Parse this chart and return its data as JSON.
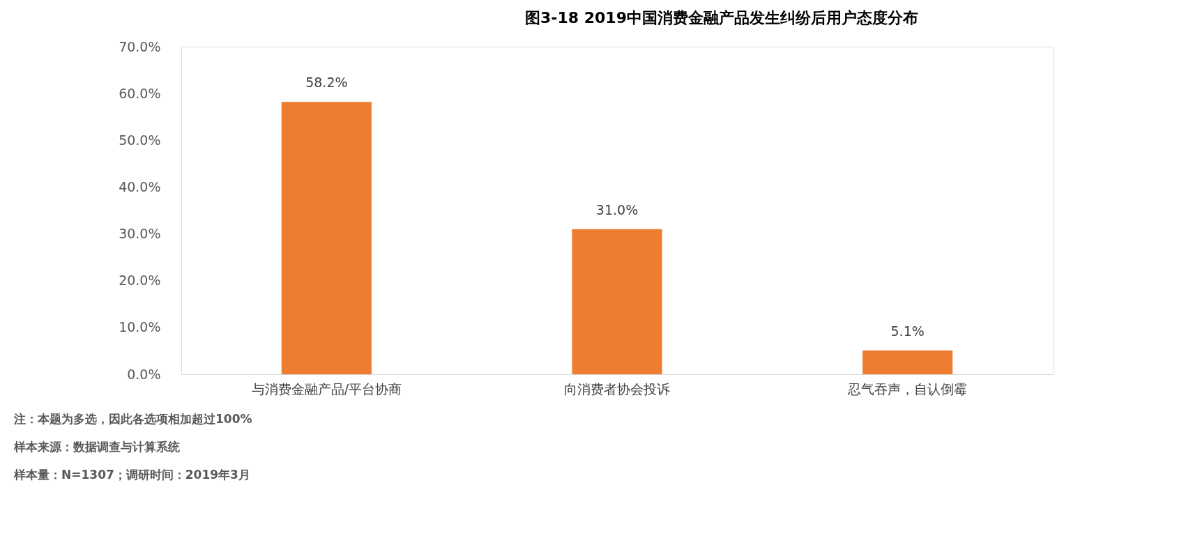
{
  "chart_data": {
    "type": "bar",
    "title": "图3-18 2019中国消费金融产品发生纠纷后用户态度分布",
    "categories": [
      "与消费金融产品/平台协商",
      "向消费者协会投诉",
      "忍气吞声，自认倒霉"
    ],
    "values": [
      58.2,
      31.0,
      5.1
    ],
    "color": "#ed7d31",
    "value_labels": [
      "58.2%",
      "31.0%",
      "5.1%"
    ],
    "ylim": [
      0,
      70
    ],
    "yticks": [
      {
        "value": 0,
        "label": "0.0%"
      },
      {
        "value": 10,
        "label": "10.0%"
      },
      {
        "value": 20,
        "label": "20.0%"
      },
      {
        "value": 30,
        "label": "30.0%"
      },
      {
        "value": 40,
        "label": "40.0%"
      },
      {
        "value": 50,
        "label": "50.0%"
      },
      {
        "value": 60,
        "label": "60.0%"
      },
      {
        "value": 70,
        "label": "70.0%"
      }
    ],
    "grid": false,
    "annotations": [
      "注：本题为多选，因此各选项相加超过100%",
      "样本来源：数据调查与计算系统",
      "样本量：N=1307；调研时间：2019年3月"
    ]
  }
}
